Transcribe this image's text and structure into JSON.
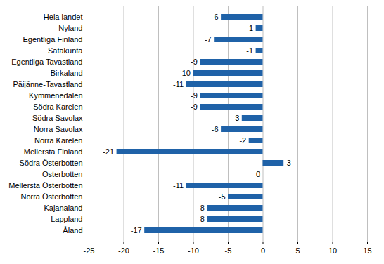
{
  "chart_data": {
    "type": "bar",
    "orientation": "horizontal",
    "categories": [
      "Hela landet",
      "Nyland",
      "Egentliga Finland",
      "Satakunta",
      "Egentliga Tavastland",
      "Birkaland",
      "Päijänne-Tavastland",
      "Kymmenedalen",
      "Södra Karelen",
      "Södra Savolax",
      "Norra Savolax",
      "Norra Karelen",
      "Mellersta Finland",
      "Södra Österbotten",
      "Österbotten",
      "Mellersta Österbotten",
      "Norra Österbotten",
      "Kajanaland",
      "Lappland",
      "Åland"
    ],
    "values": [
      -6,
      -1,
      -7,
      -1,
      -9,
      -10,
      -11,
      -9,
      -9,
      -3,
      -6,
      -2,
      -21,
      3,
      0,
      -11,
      -5,
      -8,
      -8,
      -17
    ],
    "color": "#1f62a8",
    "xlim": [
      -25,
      15
    ],
    "xticks": [
      -25,
      -20,
      -15,
      -10,
      -5,
      0,
      5,
      10,
      15
    ],
    "grid": true,
    "data_labels": true
  }
}
